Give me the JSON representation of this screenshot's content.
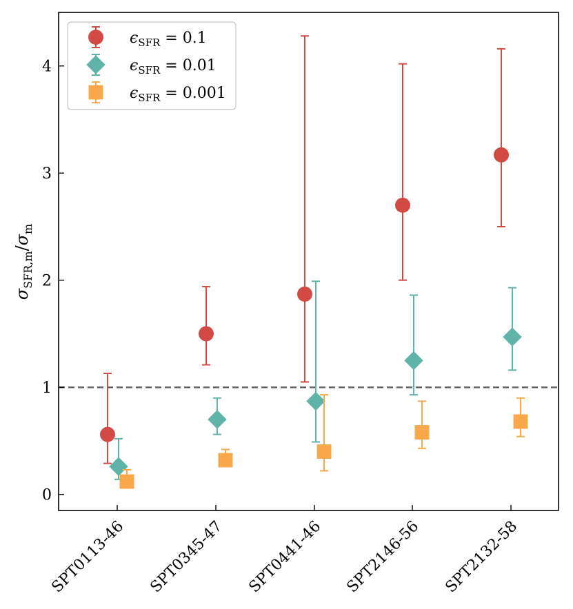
{
  "chart_data": {
    "type": "scatter",
    "title": "",
    "xlabel": "",
    "ylabel": "σSFR,m/σm",
    "ylabel_parts": {
      "sym": "σ",
      "sub1": "SFR,m",
      "slash": "/",
      "sub2": "m"
    },
    "categories": [
      "SPT0113-46",
      "SPT0345-47",
      "SPT0441-46",
      "SPT2146-56",
      "SPT2132-58"
    ],
    "ylim": [
      -0.15,
      4.5
    ],
    "yticks": [
      0,
      1,
      2,
      3,
      4
    ],
    "ytick_labels": [
      "0",
      "1",
      "2",
      "3",
      "4"
    ],
    "reference_line": {
      "y": 1.0,
      "style": "dashed",
      "color": "#666666"
    },
    "legend_position": "upper-left",
    "series": [
      {
        "name": "εSFR = 0.1",
        "eps_symbol": "ϵ",
        "eps_sub": "SFR",
        "eps_value": " = 0.1",
        "marker": "circle",
        "color": "#d24a43",
        "values": [
          0.56,
          1.5,
          1.87,
          2.7,
          3.17
        ],
        "err_low": [
          0.29,
          1.21,
          1.05,
          2.0,
          2.5
        ],
        "err_high": [
          1.13,
          1.94,
          4.28,
          4.02,
          4.16
        ]
      },
      {
        "name": "εSFR = 0.01",
        "eps_symbol": "ϵ",
        "eps_sub": "SFR",
        "eps_value": " = 0.01",
        "marker": "diamond",
        "color": "#5fb3a9",
        "values": [
          0.26,
          0.7,
          0.87,
          1.25,
          1.47
        ],
        "err_low": [
          0.14,
          0.56,
          0.49,
          0.93,
          1.16
        ],
        "err_high": [
          0.52,
          0.9,
          1.99,
          1.86,
          1.93
        ]
      },
      {
        "name": "εSFR = 0.001",
        "eps_symbol": "ϵ",
        "eps_sub": "SFR",
        "eps_value": " = 0.001",
        "marker": "square",
        "color": "#f8a84b",
        "values": [
          0.12,
          0.32,
          0.4,
          0.58,
          0.68
        ],
        "err_low": [
          0.07,
          0.29,
          0.22,
          0.43,
          0.54
        ],
        "err_high": [
          0.23,
          0.42,
          0.93,
          0.87,
          0.9
        ]
      }
    ]
  }
}
